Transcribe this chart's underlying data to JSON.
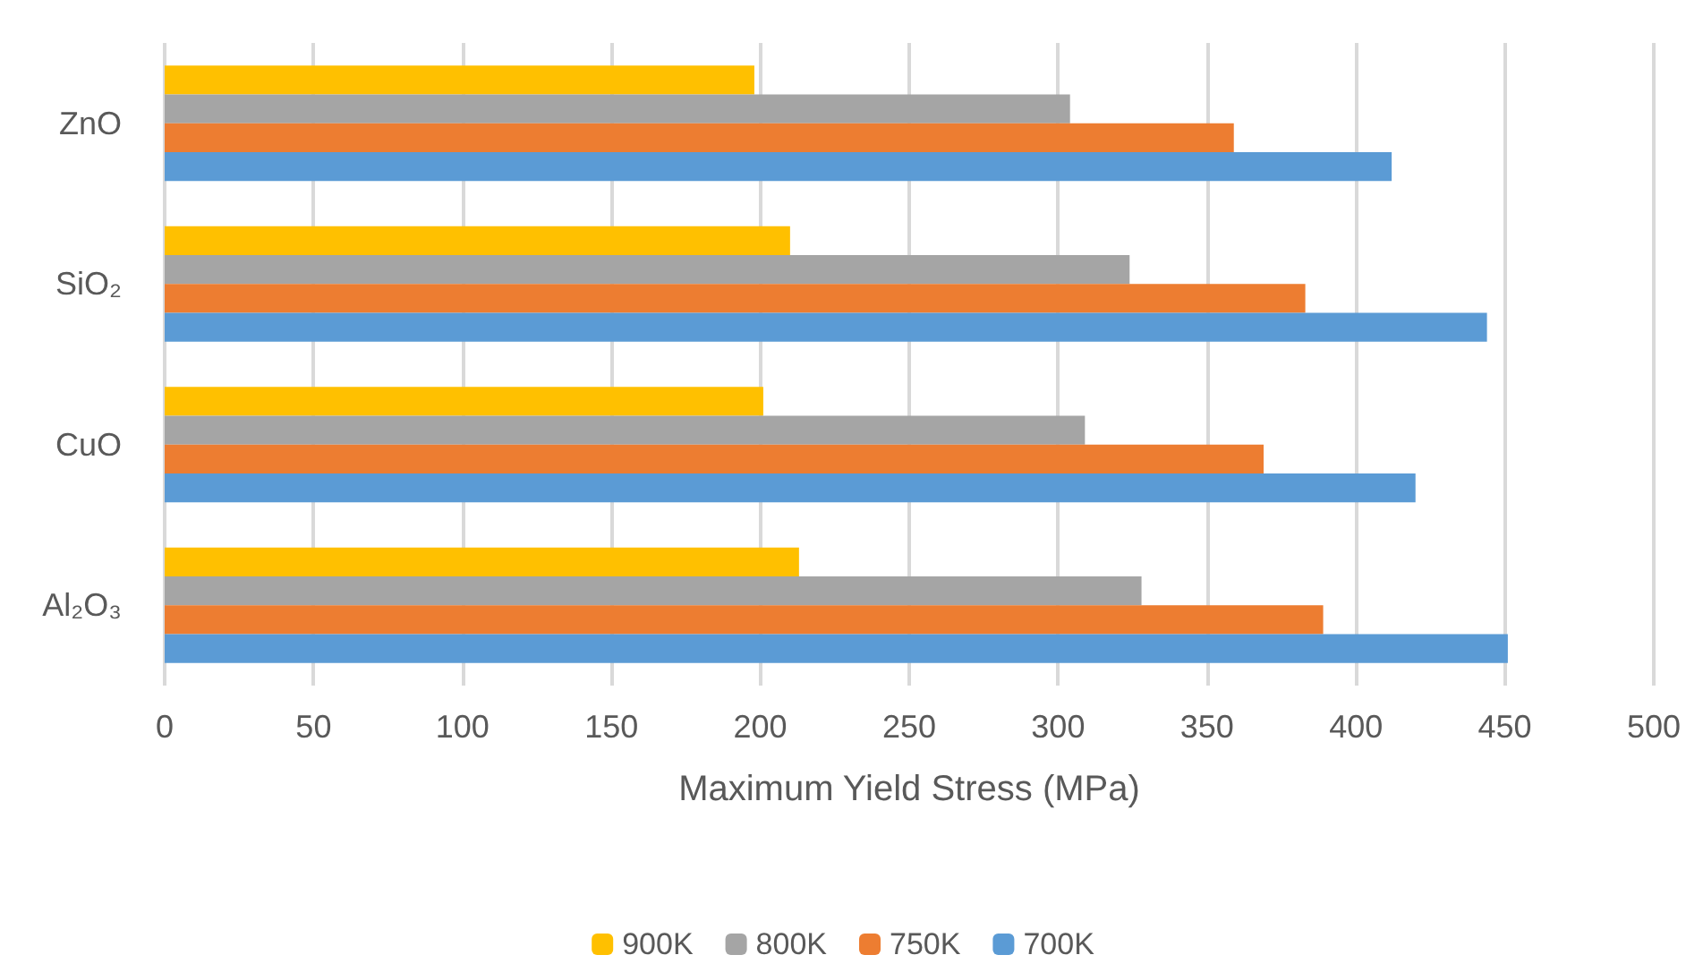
{
  "chart_data": {
    "type": "bar",
    "orientation": "horizontal",
    "xlabel": "Maximum Yield Stress (MPa)",
    "categories": [
      "ZnO",
      "SiO₂",
      "CuO",
      "Al₂O₃"
    ],
    "series": [
      {
        "name": "900K",
        "color": "#ffc000",
        "values": [
          198,
          210,
          201,
          213
        ]
      },
      {
        "name": "800K",
        "color": "#a5a5a5",
        "values": [
          304,
          324,
          309,
          328
        ]
      },
      {
        "name": "750K",
        "color": "#ed7d31",
        "values": [
          359,
          383,
          369,
          389
        ]
      },
      {
        "name": "700K",
        "color": "#5b9bd5",
        "values": [
          412,
          444,
          420,
          451
        ]
      }
    ],
    "xlim": [
      0,
      500
    ],
    "xticks": [
      0,
      50,
      100,
      150,
      200,
      250,
      300,
      350,
      400,
      450,
      500
    ],
    "grid": "x",
    "legend": "bottom"
  }
}
